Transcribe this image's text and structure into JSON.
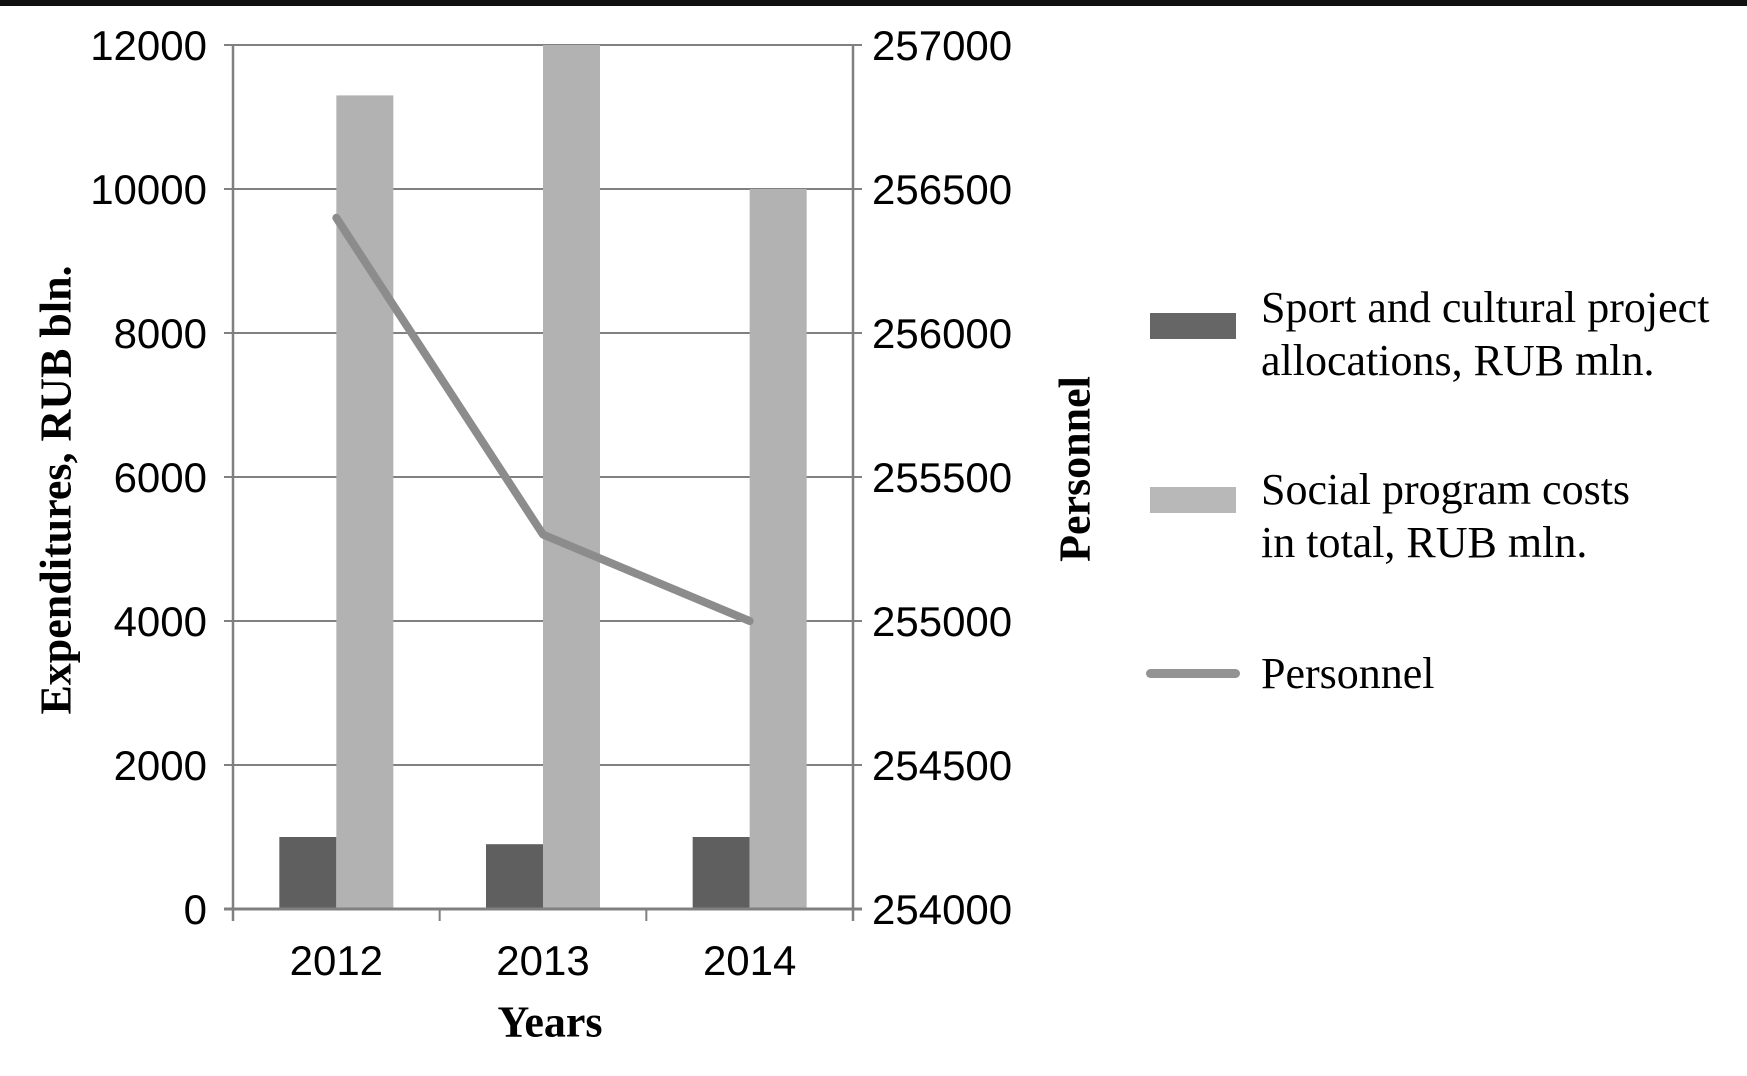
{
  "chart_data": {
    "type": "bar",
    "subtype": "bar-line-combo",
    "categories": [
      "2012",
      "2013",
      "2014"
    ],
    "series": [
      {
        "name": "Sport and cultural project allocations, RUB mln.",
        "type": "bar",
        "axis": "left",
        "values": [
          1000,
          900,
          1000
        ],
        "color": "#5f5f5f"
      },
      {
        "name": "Social program costs in total, RUB mln.",
        "type": "bar",
        "axis": "left",
        "values": [
          11300,
          12000,
          10000
        ],
        "color": "#b2b2b2"
      },
      {
        "name": "Personnel",
        "type": "line",
        "axis": "right",
        "values": [
          256400,
          255300,
          255000
        ],
        "color": "#8c8c8c"
      }
    ],
    "left_axis": {
      "title": "Expenditures, RUB bln.",
      "min": 0,
      "max": 12000,
      "step": 2000,
      "ticks": [
        12000,
        10000,
        8000,
        6000,
        4000,
        2000,
        0
      ]
    },
    "right_axis": {
      "title": "Personnel",
      "min": 254000,
      "max": 257000,
      "step": 500,
      "ticks": [
        257000,
        256500,
        256000,
        255500,
        255000,
        254500,
        254000
      ]
    },
    "x_axis": {
      "title": "Years"
    },
    "grid": true,
    "legend_position": "right"
  },
  "legend": {
    "items": [
      {
        "swatch": "bar",
        "color": "#666666",
        "lines": [
          "Sport and cultural project",
          "allocations, RUB mln."
        ]
      },
      {
        "swatch": "bar",
        "color": "#b8b8b8",
        "lines": [
          "Social program costs",
          "in total, RUB mln."
        ]
      },
      {
        "swatch": "line",
        "color": "#939393",
        "lines": [
          "Personnel"
        ]
      }
    ]
  },
  "colors": {
    "background": "#ffffff",
    "top_border": "#111111",
    "gridline": "#808080",
    "axis": "#808080",
    "text": "#000000"
  }
}
